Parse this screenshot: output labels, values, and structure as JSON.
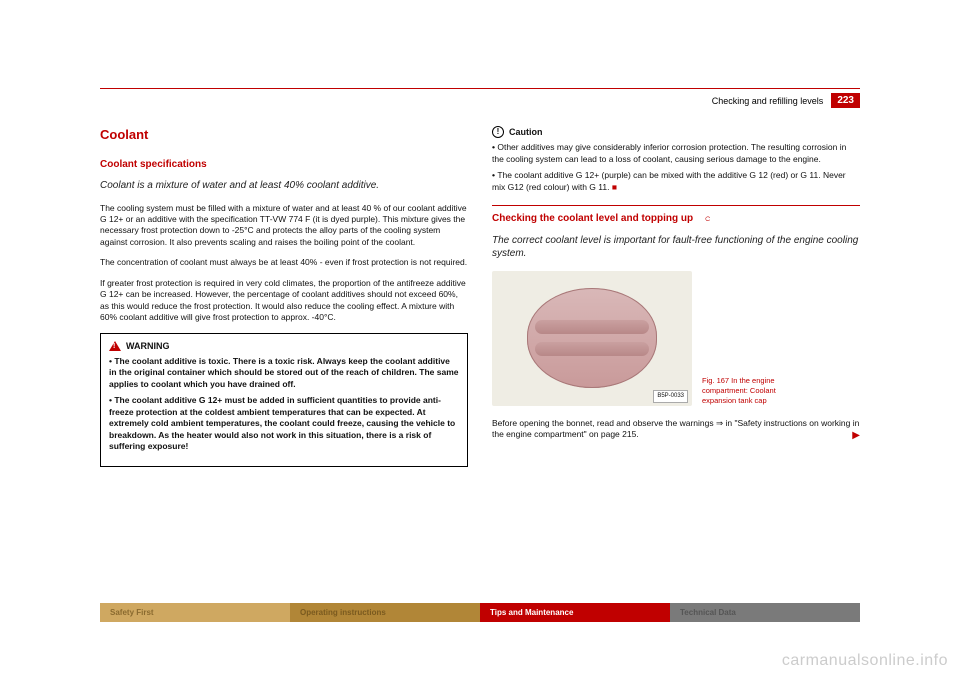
{
  "header": {
    "section": "Checking and refilling levels",
    "page": "223"
  },
  "left": {
    "h1": "Coolant",
    "h2": "Coolant specifications",
    "lead": "Coolant is a mixture of water and at least 40% coolant additive.",
    "p1": "The cooling system must be filled with a mixture of water and at least 40 % of our coolant additive G 12+ or an additive with the specification TT-VW 774 F (it is dyed purple). This mixture gives the necessary frost protection down to -25°C and protects the alloy parts of the cooling system against corrosion. It also prevents scaling and raises the boiling point of the coolant.",
    "p2": "The concentration of coolant must always be at least 40% - even if frost protection is not required.",
    "p3": "If greater frost protection is required in very cold climates, the proportion of the antifreeze additive G 12+ can be increased. However, the percentage of coolant additives should not exceed 60%, as this would reduce the frost protection. It would also reduce the cooling effect. A mixture with 60% coolant additive will give frost protection to approx. -40°C.",
    "warning_label": "WARNING",
    "w1": "The coolant additive is toxic. There is a toxic risk. Always keep the coolant additive in the original container which should be stored out of the reach of children. The same applies to coolant which you have drained off.",
    "w2": "The coolant additive G 12+ must be added in sufficient quantities to provide anti-freeze protection at the coldest ambient temperatures that can be expected. At extremely cold ambient temperatures, the coolant could freeze, causing the vehicle to breakdown. As the heater would also not work in this situation, there is a risk of suffering exposure!"
  },
  "right": {
    "caution_label": "Caution",
    "c1": "Other additives may give considerably inferior corrosion protection. The resulting corrosion in the cooling system can lead to a loss of coolant, causing serious damage to the engine.",
    "c2": "The coolant additive G 12+ (purple) can be mixed with the additive G 12 (red) or G 11. Never mix G12 (red colour) with G 11.",
    "h2": "Checking the coolant level and topping up",
    "lead": "The correct coolant level is important for fault-free functioning of the engine cooling system.",
    "fig_code": "B5P-0033",
    "fig_caption": "Fig. 167  In the engine compartment: Coolant expansion tank cap",
    "after": "Before opening the bonnet, read and observe the warnings ⇒        in \"Safety instructions on working in the engine compartment\" on page 215."
  },
  "footer": {
    "a": "Safety First",
    "b": "Operating instructions",
    "c": "Tips and Maintenance",
    "d": "Technical Data"
  },
  "watermark": "carmanualsonline.info"
}
